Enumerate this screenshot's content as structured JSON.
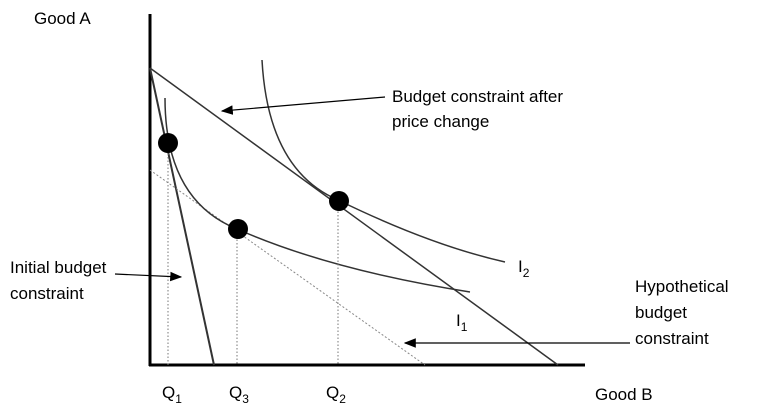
{
  "axes": {
    "y_label": "Good A",
    "x_label": "Good B"
  },
  "annotations": {
    "after_price_change": [
      "Budget constraint after",
      "price change"
    ],
    "initial": [
      "Initial budget",
      "constraint"
    ],
    "hypothetical": [
      "Hypothetical",
      "budget",
      "constraint"
    ]
  },
  "curves": [
    {
      "base": "I",
      "sub": "1"
    },
    {
      "base": "I",
      "sub": "2"
    }
  ],
  "quantities": [
    {
      "base": "Q",
      "sub": "1"
    },
    {
      "base": "Q",
      "sub": "3"
    },
    {
      "base": "Q",
      "sub": "2"
    }
  ]
}
